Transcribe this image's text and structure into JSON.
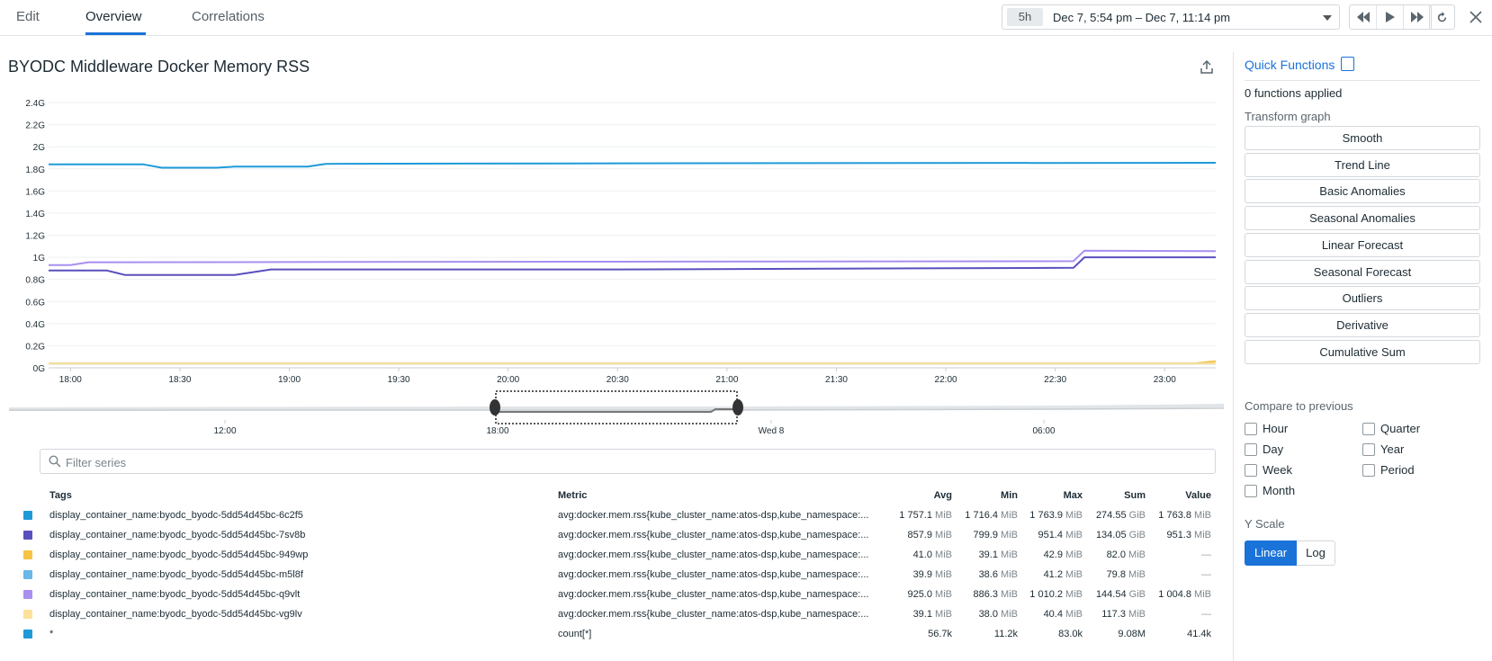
{
  "tabs": [
    {
      "label": "Edit",
      "active": false
    },
    {
      "label": "Overview",
      "active": true
    },
    {
      "label": "Correlations",
      "active": false
    }
  ],
  "timepicker": {
    "badge": "5h",
    "range": "Dec 7, 5:54 pm – Dec 7, 11:14 pm"
  },
  "graph": {
    "title": "BYODC Middleware Docker Memory RSS"
  },
  "filter": {
    "placeholder": "Filter series",
    "value": ""
  },
  "chart_data": {
    "type": "line",
    "title": "BYODC Middleware Docker Memory RSS",
    "xlabel": "",
    "ylabel": "",
    "x_ticks": [
      "18:00",
      "18:30",
      "19:00",
      "19:30",
      "20:00",
      "20:30",
      "21:00",
      "21:30",
      "22:00",
      "22:30",
      "23:00"
    ],
    "y_ticks": [
      "0G",
      "0.2G",
      "0.4G",
      "0.6G",
      "0.8G",
      "1G",
      "1.2G",
      "1.4G",
      "1.6G",
      "1.8G",
      "2G",
      "2.2G",
      "2.4G"
    ],
    "xlim": [
      "17:54",
      "23:14"
    ],
    "ylim": [
      0,
      2.4
    ],
    "grid": true,
    "series": [
      {
        "color": "#1e9ad8",
        "x": [
          "17:54",
          "18:20",
          "18:25",
          "18:40",
          "18:45",
          "19:05",
          "19:10",
          "20:30",
          "23:14"
        ],
        "y": [
          1.84,
          1.84,
          1.81,
          1.81,
          1.82,
          1.82,
          1.845,
          1.85,
          1.855
        ]
      },
      {
        "color": "#5a4fbe",
        "x": [
          "17:54",
          "18:10",
          "18:15",
          "18:45",
          "18:55",
          "20:30",
          "22:35",
          "22:38",
          "23:14"
        ],
        "y": [
          0.88,
          0.88,
          0.84,
          0.84,
          0.89,
          0.89,
          0.905,
          1.0,
          1.0
        ]
      },
      {
        "color": "#f6c344",
        "x": [
          "17:54",
          "23:08",
          "23:14"
        ],
        "y": [
          0.04,
          0.04,
          0.06
        ]
      },
      {
        "color": "#6ab7e8",
        "x": [
          "17:54",
          "23:14"
        ],
        "y": [
          0.039,
          0.039
        ]
      },
      {
        "color": "#a88ff0",
        "x": [
          "17:54",
          "18:00",
          "18:05",
          "20:30",
          "22:35",
          "22:38",
          "23:14"
        ],
        "y": [
          0.93,
          0.93,
          0.955,
          0.96,
          0.965,
          1.06,
          1.055
        ]
      },
      {
        "color": "#fde19a",
        "x": [
          "17:54",
          "23:14"
        ],
        "y": [
          0.038,
          0.038
        ]
      }
    ]
  },
  "minimap": {
    "ticks": [
      "12:00",
      "18:00",
      "Wed 8",
      "06:00"
    ]
  },
  "table": {
    "headers": {
      "tags": "Tags",
      "metric": "Metric",
      "avg": "Avg",
      "min": "Min",
      "max": "Max",
      "sum": "Sum",
      "value": "Value"
    },
    "rows": [
      {
        "color": "#1e9ad8",
        "tag": "display_container_name:byodc_byodc-5dd54d45bc-6c2f5",
        "metric": "avg:docker.mem.rss{kube_cluster_name:atos-dsp,kube_namespace:...",
        "avg": "1 757.1",
        "avg_u": "MiB",
        "min": "1 716.4",
        "min_u": "MiB",
        "max": "1 763.9",
        "max_u": "MiB",
        "sum": "274.55",
        "sum_u": "GiB",
        "value": "1 763.8",
        "value_u": "MiB"
      },
      {
        "color": "#5a4fbe",
        "tag": "display_container_name:byodc_byodc-5dd54d45bc-7sv8b",
        "metric": "avg:docker.mem.rss{kube_cluster_name:atos-dsp,kube_namespace:...",
        "avg": "857.9",
        "avg_u": "MiB",
        "min": "799.9",
        "min_u": "MiB",
        "max": "951.4",
        "max_u": "MiB",
        "sum": "134.05",
        "sum_u": "GiB",
        "value": "951.3",
        "value_u": "MiB"
      },
      {
        "color": "#f6c344",
        "tag": "display_container_name:byodc_byodc-5dd54d45bc-949wp",
        "metric": "avg:docker.mem.rss{kube_cluster_name:atos-dsp,kube_namespace:...",
        "avg": "41.0",
        "avg_u": "MiB",
        "min": "39.1",
        "min_u": "MiB",
        "max": "42.9",
        "max_u": "MiB",
        "sum": "82.0",
        "sum_u": "MiB",
        "value": "—",
        "value_u": ""
      },
      {
        "color": "#6ab7e8",
        "tag": "display_container_name:byodc_byodc-5dd54d45bc-m5l8f",
        "metric": "avg:docker.mem.rss{kube_cluster_name:atos-dsp,kube_namespace:...",
        "avg": "39.9",
        "avg_u": "MiB",
        "min": "38.6",
        "min_u": "MiB",
        "max": "41.2",
        "max_u": "MiB",
        "sum": "79.8",
        "sum_u": "MiB",
        "value": "—",
        "value_u": ""
      },
      {
        "color": "#a88ff0",
        "tag": "display_container_name:byodc_byodc-5dd54d45bc-q9vlt",
        "metric": "avg:docker.mem.rss{kube_cluster_name:atos-dsp,kube_namespace:...",
        "avg": "925.0",
        "avg_u": "MiB",
        "min": "886.3",
        "min_u": "MiB",
        "max": "1 010.2",
        "max_u": "MiB",
        "sum": "144.54",
        "sum_u": "GiB",
        "value": "1 004.8",
        "value_u": "MiB"
      },
      {
        "color": "#fde19a",
        "tag": "display_container_name:byodc_byodc-5dd54d45bc-vg9lv",
        "metric": "avg:docker.mem.rss{kube_cluster_name:atos-dsp,kube_namespace:...",
        "avg": "39.1",
        "avg_u": "MiB",
        "min": "38.0",
        "min_u": "MiB",
        "max": "40.4",
        "max_u": "MiB",
        "sum": "117.3",
        "sum_u": "MiB",
        "value": "—",
        "value_u": ""
      },
      {
        "color": "#1e9ad8",
        "tag": "*",
        "metric": "count[*]",
        "avg": "56.7k",
        "avg_u": "",
        "min": "11.2k",
        "min_u": "",
        "max": "83.0k",
        "max_u": "",
        "sum": "9.08M",
        "sum_u": "",
        "value": "41.4k",
        "value_u": ""
      }
    ]
  },
  "quick_functions": {
    "title": "Quick Functions",
    "applied": "0 functions applied",
    "transform_label": "Transform graph",
    "buttons": [
      "Smooth",
      "Trend Line",
      "Basic Anomalies",
      "Seasonal Anomalies",
      "Linear Forecast",
      "Seasonal Forecast",
      "Outliers",
      "Derivative",
      "Cumulative Sum"
    ],
    "compare_label": "Compare to previous",
    "compare_left": [
      "Hour",
      "Day",
      "Week",
      "Month"
    ],
    "compare_right": [
      "Quarter",
      "Year",
      "Period"
    ],
    "yscale_label": "Y Scale",
    "yscale_options": [
      "Linear",
      "Log"
    ],
    "yscale_selected": "Linear"
  }
}
